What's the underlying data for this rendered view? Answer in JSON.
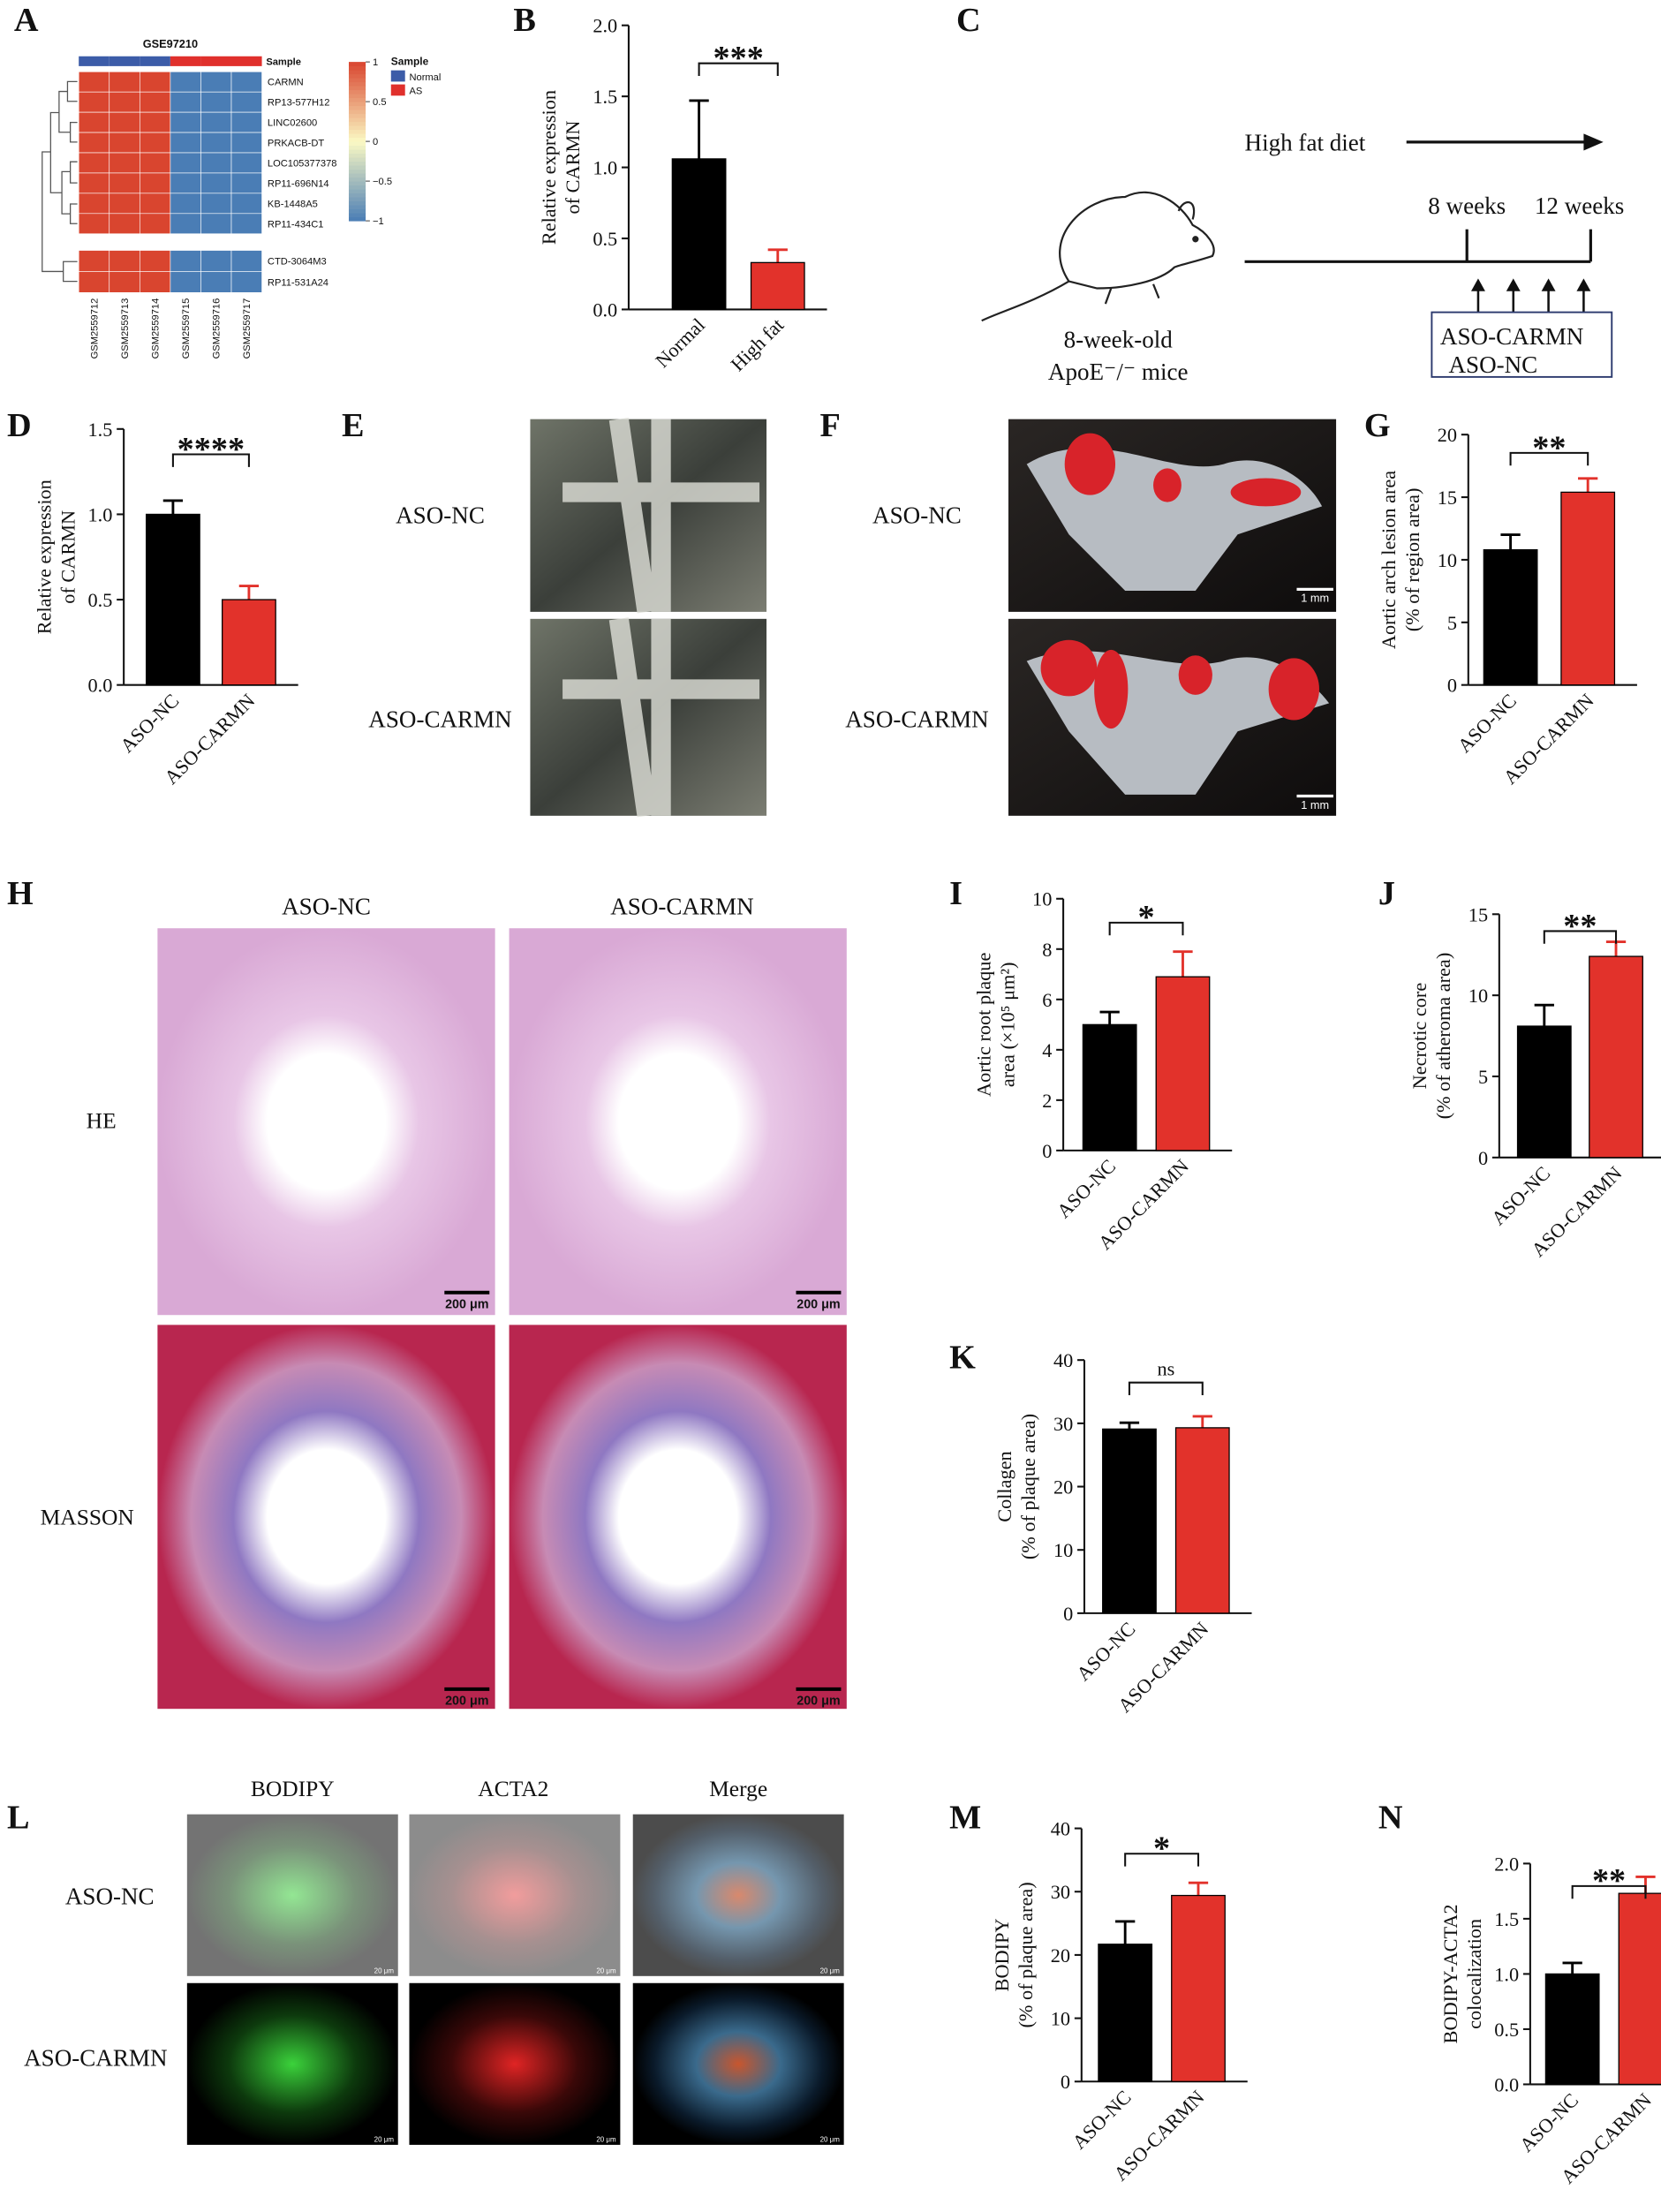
{
  "panel_letters": [
    "A",
    "B",
    "C",
    "D",
    "E",
    "F",
    "G",
    "H",
    "I",
    "J",
    "K",
    "L",
    "M",
    "N"
  ],
  "chart_data": [
    {
      "type": "heatmap",
      "title": "GSE97210",
      "rows": [
        "CARMN",
        "RP13-577H12",
        "LINC02600",
        "PRKACB-DT",
        "LOC105377378",
        "RP11-696N14",
        "KB-1448A5",
        "RP11-434C1",
        "CTD-3064M3",
        "RP11-531A24"
      ],
      "columns": [
        "GSM2559712",
        "GSM2559713",
        "GSM2559714",
        "GSM2559715",
        "GSM2559716",
        "GSM2559717"
      ],
      "values": [
        [
          1,
          1,
          1,
          -1,
          -1,
          -1
        ],
        [
          1,
          1,
          1,
          -1,
          -1,
          -1
        ],
        [
          1,
          1,
          1,
          -1,
          -1,
          -1
        ],
        [
          1,
          1,
          1,
          -1,
          -1,
          -1
        ],
        [
          1,
          1,
          1,
          -1,
          -1,
          -1
        ],
        [
          1,
          1,
          1,
          -1,
          -1,
          -1
        ],
        [
          1,
          1,
          1,
          -1,
          -1,
          -1
        ],
        [
          1,
          1,
          1,
          -1,
          -1,
          -1
        ],
        [
          1,
          1,
          1,
          -1,
          -1,
          -1
        ],
        [
          1,
          1,
          1,
          -1,
          -1,
          -1
        ]
      ],
      "colorscale": [
        "#4a7db5",
        "#fbf9c4",
        "#d9452f"
      ],
      "clim": [
        -1,
        1
      ],
      "colorbar_ticks": [
        1,
        0.5,
        0,
        {
          "value": -0.5,
          "label": "−0.5"
        },
        {
          "value": -1,
          "label": "−1"
        }
      ],
      "annotation_label": "Sample",
      "legend_title": "Sample",
      "groups": [
        {
          "name": "Normal",
          "color": "#3c5ca8"
        },
        {
          "name": "AS",
          "color": "#e0302c"
        }
      ],
      "column_group": [
        0,
        0,
        0,
        1,
        1,
        1
      ]
    },
    {
      "type": "bar",
      "categories": [
        "Normal",
        "High fat"
      ],
      "values": [
        1.06,
        0.33
      ],
      "errors": [
        0.41,
        0.09
      ],
      "colors": [
        "#000000",
        "#e2322b"
      ],
      "ylabel": [
        "Relative expression",
        "of CARMN"
      ],
      "ylim": [
        0,
        2
      ],
      "yticks": [
        {
          "value": 0,
          "label": "0.0"
        },
        {
          "value": 0.5,
          "label": "0.5"
        },
        {
          "value": 1,
          "label": "1.0"
        },
        {
          "value": 1.5,
          "label": "1.5"
        },
        {
          "value": 2,
          "label": "2.0"
        }
      ],
      "significance": "***"
    },
    {
      "type": "bar",
      "categories": [
        "ASO-NC",
        "ASO-CARMN"
      ],
      "values": [
        1.0,
        0.5
      ],
      "errors": [
        0.08,
        0.08
      ],
      "colors": [
        "#000000",
        "#e2322b"
      ],
      "ylabel": [
        "Relative expression",
        "of CARMN"
      ],
      "ylim": [
        0,
        1.5
      ],
      "yticks": [
        {
          "value": 0,
          "label": "0.0"
        },
        {
          "value": 0.5,
          "label": "0.5"
        },
        {
          "value": 1,
          "label": "1.0"
        },
        {
          "value": 1.5,
          "label": "1.5"
        }
      ],
      "significance": "****"
    },
    {
      "type": "bar",
      "categories": [
        "ASO-NC",
        "ASO-CARMN"
      ],
      "values": [
        10.8,
        15.4
      ],
      "errors": [
        1.2,
        1.1
      ],
      "colors": [
        "#000000",
        "#e2322b"
      ],
      "ylabel": [
        "Aortic arch lesion area",
        "(% of region area)"
      ],
      "ylim": [
        0,
        20
      ],
      "yticks": [
        0,
        5,
        10,
        15,
        20
      ],
      "significance": "**"
    },
    {
      "type": "bar",
      "categories": [
        "ASO-NC",
        "ASO-CARMN"
      ],
      "values": [
        5.0,
        6.9
      ],
      "errors": [
        0.5,
        1.0
      ],
      "colors": [
        "#000000",
        "#e2322b"
      ],
      "ylabel": [
        "Aortic root plaque",
        "area (×10⁵ μm²)"
      ],
      "ylim": [
        0,
        10
      ],
      "yticks": [
        0,
        2,
        4,
        6,
        8,
        10
      ],
      "significance": "*"
    },
    {
      "type": "bar",
      "categories": [
        "ASO-NC",
        "ASO-CARMN"
      ],
      "values": [
        8.1,
        12.4
      ],
      "errors": [
        1.3,
        0.9
      ],
      "colors": [
        "#000000",
        "#e2322b"
      ],
      "ylabel": [
        "Necrotic core",
        "(% of atheroma area)"
      ],
      "ylim": [
        0,
        15
      ],
      "yticks": [
        0,
        5,
        10,
        15
      ],
      "significance": "**"
    },
    {
      "type": "bar",
      "categories": [
        "ASO-NC",
        "ASO-CARMN"
      ],
      "values": [
        29.1,
        29.3
      ],
      "errors": [
        1.0,
        1.8
      ],
      "colors": [
        "#000000",
        "#e2322b"
      ],
      "ylabel": [
        "Collagen",
        "(% of plaque area)"
      ],
      "ylim": [
        0,
        40
      ],
      "yticks": [
        0,
        10,
        20,
        30,
        40
      ],
      "significance": "ns"
    },
    {
      "type": "bar",
      "categories": [
        "ASO-NC",
        "ASO-CARMN"
      ],
      "values": [
        21.7,
        29.4
      ],
      "errors": [
        3.6,
        2.0
      ],
      "colors": [
        "#000000",
        "#e2322b"
      ],
      "ylabel": [
        "BODIPY",
        "(% of plaque area)"
      ],
      "ylim": [
        0,
        40
      ],
      "yticks": [
        0,
        10,
        20,
        30,
        40
      ],
      "significance": "*"
    },
    {
      "type": "bar",
      "categories": [
        "ASO-NC",
        "ASO-CARMN"
      ],
      "values": [
        1.0,
        1.73
      ],
      "errors": [
        0.1,
        0.15
      ],
      "colors": [
        "#000000",
        "#e2322b"
      ],
      "ylabel": [
        "BODIPY-ACTA2",
        "colocalization"
      ],
      "ylim": [
        0,
        2
      ],
      "yticks": [
        {
          "value": 0,
          "label": "0.0"
        },
        {
          "value": 0.5,
          "label": "0.5"
        },
        {
          "value": 1,
          "label": "1.0"
        },
        {
          "value": 1.5,
          "label": "1.5"
        },
        {
          "value": 2,
          "label": "2.0"
        }
      ],
      "significance": "**"
    }
  ],
  "diagram": {
    "diet": "High fat diet",
    "timepoints": [
      "8 weeks",
      "12 weeks"
    ],
    "mouse_label": [
      "8-week-old",
      "ApoE⁻/⁻ mice"
    ],
    "treatments": [
      "ASO-CARMN",
      "ASO-NC"
    ]
  },
  "panel_E": {
    "rows": [
      "ASO-NC",
      "ASO-CARMN"
    ]
  },
  "panel_F": {
    "rows": [
      "ASO-NC",
      "ASO-CARMN"
    ],
    "scale_bar": "1 mm"
  },
  "panel_H": {
    "columns": [
      "ASO-NC",
      "ASO-CARMN"
    ],
    "rows": [
      "HE",
      "MASSON"
    ],
    "scale_bar": "200 μm"
  },
  "panel_L": {
    "columns": [
      "BODIPY",
      "ACTA2",
      "Merge"
    ],
    "rows": [
      "ASO-NC",
      "ASO-CARMN"
    ],
    "scale_bar": "20 μm"
  }
}
